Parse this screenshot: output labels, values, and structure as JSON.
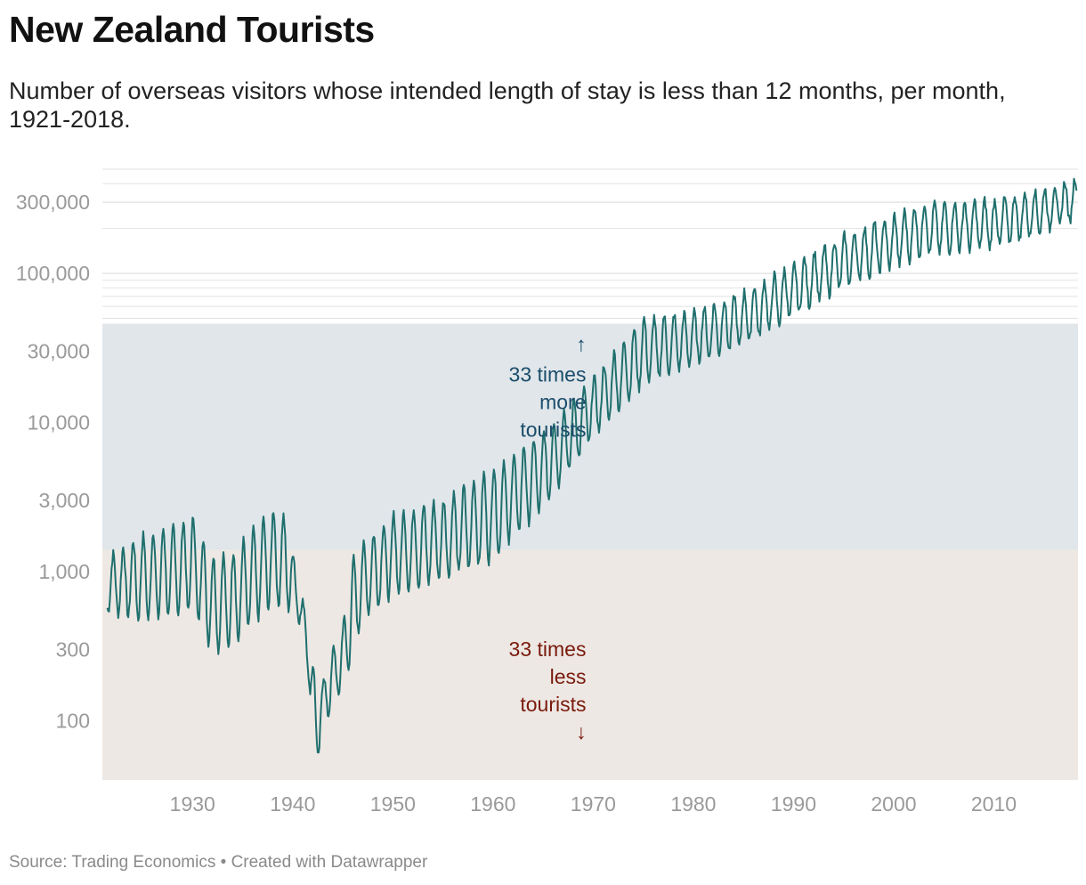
{
  "header": {
    "title": "New Zealand Tourists",
    "subtitle": "Number of overseas visitors whose intended length of stay is less than 12 months, per month, 1921-2018."
  },
  "footer": {
    "source_label": "Source: Trading Economics",
    "separator": "•",
    "credit_label": "Created with Datawrapper"
  },
  "colors": {
    "line": "#1f6f6d",
    "band_more": "#e0e6ea",
    "band_less": "#ede8e4",
    "annotation_more": "#1b4d6b",
    "annotation_less": "#7a1a0c",
    "gridline": "#e2e2e2",
    "tick_label": "#9a9a9a"
  },
  "chart_data": {
    "type": "line",
    "title": "New Zealand Tourists",
    "xlabel": "",
    "ylabel": "",
    "y_scale": "log",
    "xlim": [
      1921,
      2018.4
    ],
    "ylim": [
      40,
      500000
    ],
    "x_ticks": [
      {
        "value": 1930,
        "label": "1930"
      },
      {
        "value": 1940,
        "label": "1940"
      },
      {
        "value": 1950,
        "label": "1950"
      },
      {
        "value": 1960,
        "label": "1960"
      },
      {
        "value": 1970,
        "label": "1970"
      },
      {
        "value": 1980,
        "label": "1980"
      },
      {
        "value": 1990,
        "label": "1990"
      },
      {
        "value": 2000,
        "label": "2000"
      },
      {
        "value": 2010,
        "label": "2010"
      }
    ],
    "y_ticks": [
      {
        "value": 100,
        "label": "100"
      },
      {
        "value": 300,
        "label": "300"
      },
      {
        "value": 1000,
        "label": "1,000"
      },
      {
        "value": 3000,
        "label": "3,000"
      },
      {
        "value": 10000,
        "label": "10,000"
      },
      {
        "value": 30000,
        "label": "30,000"
      },
      {
        "value": 100000,
        "label": "100,000"
      },
      {
        "value": 300000,
        "label": "300,000"
      }
    ],
    "bands": [
      {
        "name": "more",
        "from": 1400,
        "to": 46000
      },
      {
        "name": "less",
        "from": 40,
        "to": 1400
      }
    ],
    "annotations": [
      {
        "name": "more",
        "lines": [
          "33 times",
          "more",
          "tourists"
        ],
        "arrow": "↑",
        "x": 1969.3,
        "y": 30000
      },
      {
        "name": "less",
        "lines": [
          "33 times",
          "less",
          "tourists"
        ],
        "arrow": "↓",
        "x": 1969.3,
        "y": 270
      }
    ],
    "series": [
      {
        "name": "Overseas visitors per month",
        "frequency": "monthly",
        "x_start": 1921.5,
        "x_end": 2018.3,
        "seasonal_peak_month": 2,
        "seasonal_trough_month": 7,
        "anchors": [
          {
            "x": 1921.5,
            "peak": 1250,
            "trough": 540
          },
          {
            "x": 1925,
            "peak": 1750,
            "trough": 470
          },
          {
            "x": 1929,
            "peak": 2150,
            "trough": 520
          },
          {
            "x": 1930,
            "peak": 2400,
            "trough": 560
          },
          {
            "x": 1932,
            "peak": 1250,
            "trough": 290
          },
          {
            "x": 1934,
            "peak": 1350,
            "trough": 310
          },
          {
            "x": 1936,
            "peak": 1900,
            "trough": 450
          },
          {
            "x": 1938,
            "peak": 2600,
            "trough": 600
          },
          {
            "x": 1939.5,
            "peak": 2300,
            "trough": 560
          },
          {
            "x": 1940.5,
            "peak": 880,
            "trough": 520
          },
          {
            "x": 1941.5,
            "peak": 480,
            "trough": 230
          },
          {
            "x": 1942.2,
            "peak": 200,
            "trough": 40
          },
          {
            "x": 1943,
            "peak": 190,
            "trough": 85
          },
          {
            "x": 1944,
            "peak": 300,
            "trough": 130
          },
          {
            "x": 1945,
            "peak": 440,
            "trough": 160
          },
          {
            "x": 1946,
            "peak": 1200,
            "trough": 280
          },
          {
            "x": 1947,
            "peak": 1500,
            "trough": 500
          },
          {
            "x": 1950,
            "peak": 2400,
            "trough": 700
          },
          {
            "x": 1955,
            "peak": 3000,
            "trough": 900
          },
          {
            "x": 1960,
            "peak": 5000,
            "trough": 1200
          },
          {
            "x": 1965,
            "peak": 8500,
            "trough": 2700
          },
          {
            "x": 1970,
            "peak": 20000,
            "trough": 8000
          },
          {
            "x": 1975,
            "peak": 50000,
            "trough": 18000
          },
          {
            "x": 1980,
            "peak": 55000,
            "trough": 25000
          },
          {
            "x": 1985,
            "peak": 75000,
            "trough": 33000
          },
          {
            "x": 1990,
            "peak": 115000,
            "trough": 52000
          },
          {
            "x": 1995,
            "peak": 180000,
            "trough": 82000
          },
          {
            "x": 2000,
            "peak": 245000,
            "trough": 110000
          },
          {
            "x": 2003,
            "peak": 295000,
            "trough": 135000
          },
          {
            "x": 2010,
            "peak": 310000,
            "trough": 150000
          },
          {
            "x": 2015,
            "peak": 370000,
            "trough": 190000
          },
          {
            "x": 2018.3,
            "peak": 440000,
            "trough": 230000
          }
        ]
      }
    ]
  }
}
